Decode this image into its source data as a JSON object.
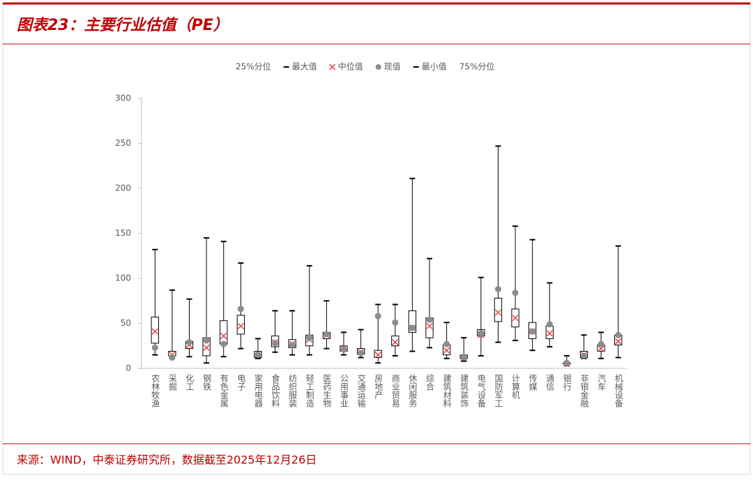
{
  "chart_data": {
    "type": "box",
    "title": "图表23：主要行业估值（PE）",
    "source": "来源：WIND，中泰证券研究所，数据截至2025年12月26日",
    "categories": [
      "农林牧渔",
      "采掘",
      "化工",
      "钢铁",
      "有色金属",
      "电子",
      "家用电器",
      "食品饮料",
      "纺织服装",
      "轻工制造",
      "医药生物",
      "公用事业",
      "交通运输",
      "房地产",
      "商业贸易",
      "休闲服务",
      "综合",
      "建筑材料",
      "建筑装饰",
      "电气设备",
      "国防军工",
      "计算机",
      "传媒",
      "通信",
      "银行",
      "非银金融",
      "汽车",
      "机械设备"
    ],
    "series": [
      {
        "name": "25%分位",
        "color": "#ffffff",
        "values": [
          28,
          14,
          22,
          14,
          27,
          38,
          12,
          24,
          23,
          25,
          33,
          19,
          16,
          12,
          25,
          40,
          34,
          15,
          11,
          36,
          52,
          46,
          33,
          33,
          5,
          12,
          19,
          26
        ]
      },
      {
        "name": "最大值",
        "color": "#000000",
        "values": [
          132,
          87,
          77,
          145,
          141,
          117,
          33,
          64,
          64,
          114,
          75,
          40,
          43,
          71,
          71,
          211,
          122,
          51,
          34,
          101,
          247,
          158,
          143,
          95,
          14,
          37,
          40,
          136
        ]
      },
      {
        "name": "中位值",
        "color": "#e8413c",
        "values": [
          41,
          15,
          26,
          23,
          36,
          47,
          16,
          29,
          27,
          32,
          37,
          22,
          18,
          15,
          29,
          45,
          47,
          20,
          12,
          37,
          62,
          56,
          41,
          39,
          5,
          15,
          22,
          30
        ]
      },
      {
        "name": "现值",
        "color": "#8c8c8c",
        "values": [
          23,
          12,
          29,
          31,
          27,
          66,
          15,
          28,
          26,
          34,
          38,
          21,
          17,
          58,
          51,
          45,
          54,
          27,
          12,
          39,
          88,
          84,
          41,
          49,
          6,
          14,
          27,
          37
        ]
      },
      {
        "name": "最小值",
        "color": "#000000",
        "values": [
          15,
          11,
          13,
          6,
          13,
          22,
          11,
          18,
          15,
          15,
          22,
          15,
          12,
          6,
          14,
          19,
          23,
          11,
          8,
          14,
          29,
          31,
          20,
          24,
          3,
          11,
          11,
          12
        ]
      },
      {
        "name": "75%分位",
        "color": "#ffffff",
        "values": [
          57,
          19,
          30,
          34,
          53,
          59,
          19,
          36,
          32,
          37,
          40,
          25,
          22,
          20,
          36,
          64,
          56,
          26,
          15,
          43,
          78,
          66,
          51,
          47,
          6,
          19,
          26,
          37
        ]
      }
    ],
    "ylim": [
      0,
      300
    ],
    "yticks": [
      0,
      50,
      100,
      150,
      200,
      250,
      300
    ]
  }
}
